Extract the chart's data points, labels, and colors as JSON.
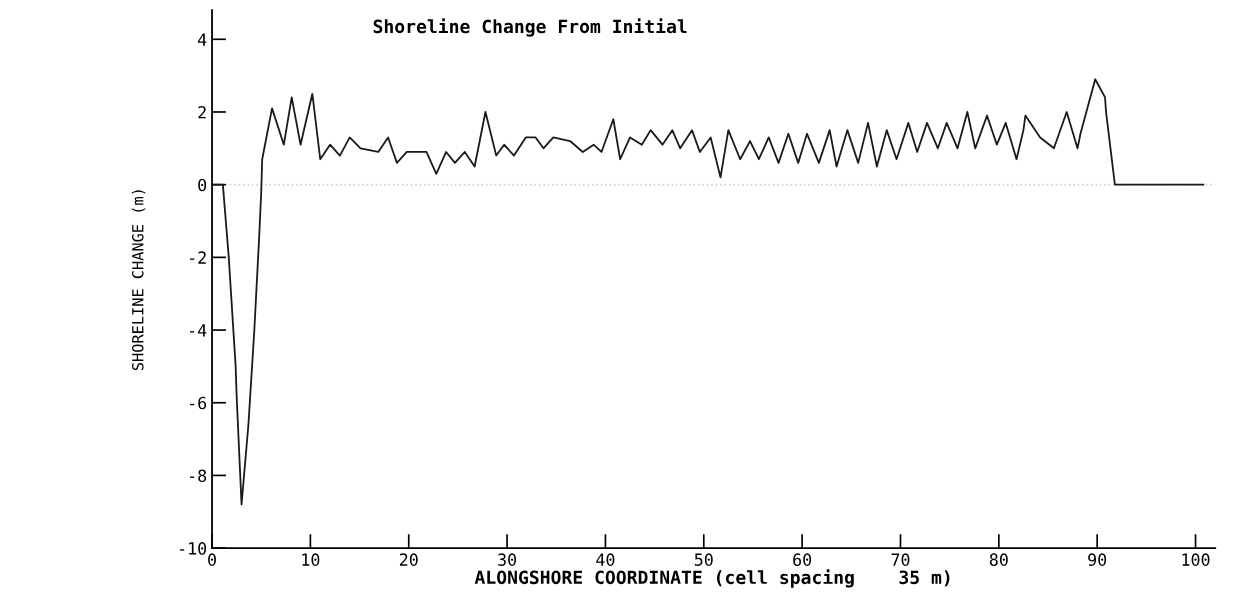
{
  "chart_data": {
    "type": "line",
    "title": "Shoreline Change From Initial",
    "xlabel": "ALONGSHORE COORDINATE (cell spacing    35 m)",
    "ylabel": "SHORELINE CHANGE (m)",
    "series": [
      {
        "color": "#1a1a1a",
        "x": [
          0,
          1.1,
          1.7,
          2.4,
          2.5,
          3.0,
          3.7,
          4.3,
          4.8,
          5.0,
          5.1,
          6.1,
          7.3,
          8.1,
          9.0,
          10.2,
          11.0,
          12.0,
          13.0,
          14.0,
          15.1,
          16.9,
          17.9,
          18.8,
          19.8,
          21.8,
          22.8,
          23.8,
          24.7,
          25.7,
          26.7,
          27.8,
          28.9,
          29.7,
          30.7,
          31.9,
          32.9,
          33.7,
          34.7,
          36.4,
          37.7,
          38.8,
          39.6,
          40.8,
          41.5,
          42.5,
          43.7,
          44.6,
          45.8,
          46.8,
          47.6,
          48.8,
          49.6,
          50.7,
          51.7,
          52.5,
          53.7,
          54.7,
          55.6,
          56.6,
          57.6,
          58.6,
          59.6,
          60.5,
          61.7,
          62.8,
          63.5,
          64.6,
          65.7,
          66.7,
          67.6,
          68.6,
          69.6,
          70.8,
          71.7,
          72.7,
          73.8,
          74.7,
          75.8,
          76.8,
          77.6,
          78.8,
          79.8,
          80.7,
          81.8,
          82.5,
          82.7,
          84.2,
          85.6,
          86.9,
          88.0,
          88.3,
          89.8,
          90.8,
          90.9,
          91.8,
          100.8
        ],
        "values": [
          0,
          0,
          -2.0,
          -5.0,
          -5.8,
          -8.8,
          -6.6,
          -4.0,
          -1.4,
          -0.2,
          0.7,
          2.1,
          1.1,
          2.4,
          1.1,
          2.5,
          0.7,
          1.1,
          0.8,
          1.3,
          1.0,
          0.9,
          1.3,
          0.6,
          0.9,
          0.9,
          0.3,
          0.9,
          0.6,
          0.9,
          0.5,
          2.0,
          0.8,
          1.1,
          0.8,
          1.3,
          1.3,
          1.0,
          1.3,
          1.2,
          0.9,
          1.1,
          0.9,
          1.8,
          0.7,
          1.3,
          1.1,
          1.5,
          1.1,
          1.5,
          1.0,
          1.5,
          0.9,
          1.3,
          0.2,
          1.5,
          0.7,
          1.2,
          0.7,
          1.3,
          0.6,
          1.4,
          0.6,
          1.4,
          0.6,
          1.5,
          0.5,
          1.5,
          0.6,
          1.7,
          0.5,
          1.5,
          0.7,
          1.7,
          0.9,
          1.7,
          1.0,
          1.7,
          1.0,
          2.0,
          1.0,
          1.9,
          1.1,
          1.7,
          0.7,
          1.5,
          1.9,
          1.3,
          1.0,
          2.0,
          1.0,
          1.4,
          2.9,
          2.4,
          2.0,
          0,
          0
        ]
      }
    ],
    "xlim": [
      0,
      102
    ],
    "xticks": [
      0,
      10,
      20,
      30,
      40,
      50,
      60,
      70,
      80,
      90,
      100
    ],
    "ylim": [
      -10,
      4.8
    ],
    "yticks": [
      -10,
      -8,
      -6,
      -4,
      -2,
      0,
      2,
      4
    ],
    "ref_lines": [
      {
        "axis": "y",
        "value": 0,
        "color": "#d0d0d0",
        "line_style": "dotted"
      }
    ],
    "grid": false,
    "legend": false,
    "marker": "none",
    "line_style": "solid"
  }
}
